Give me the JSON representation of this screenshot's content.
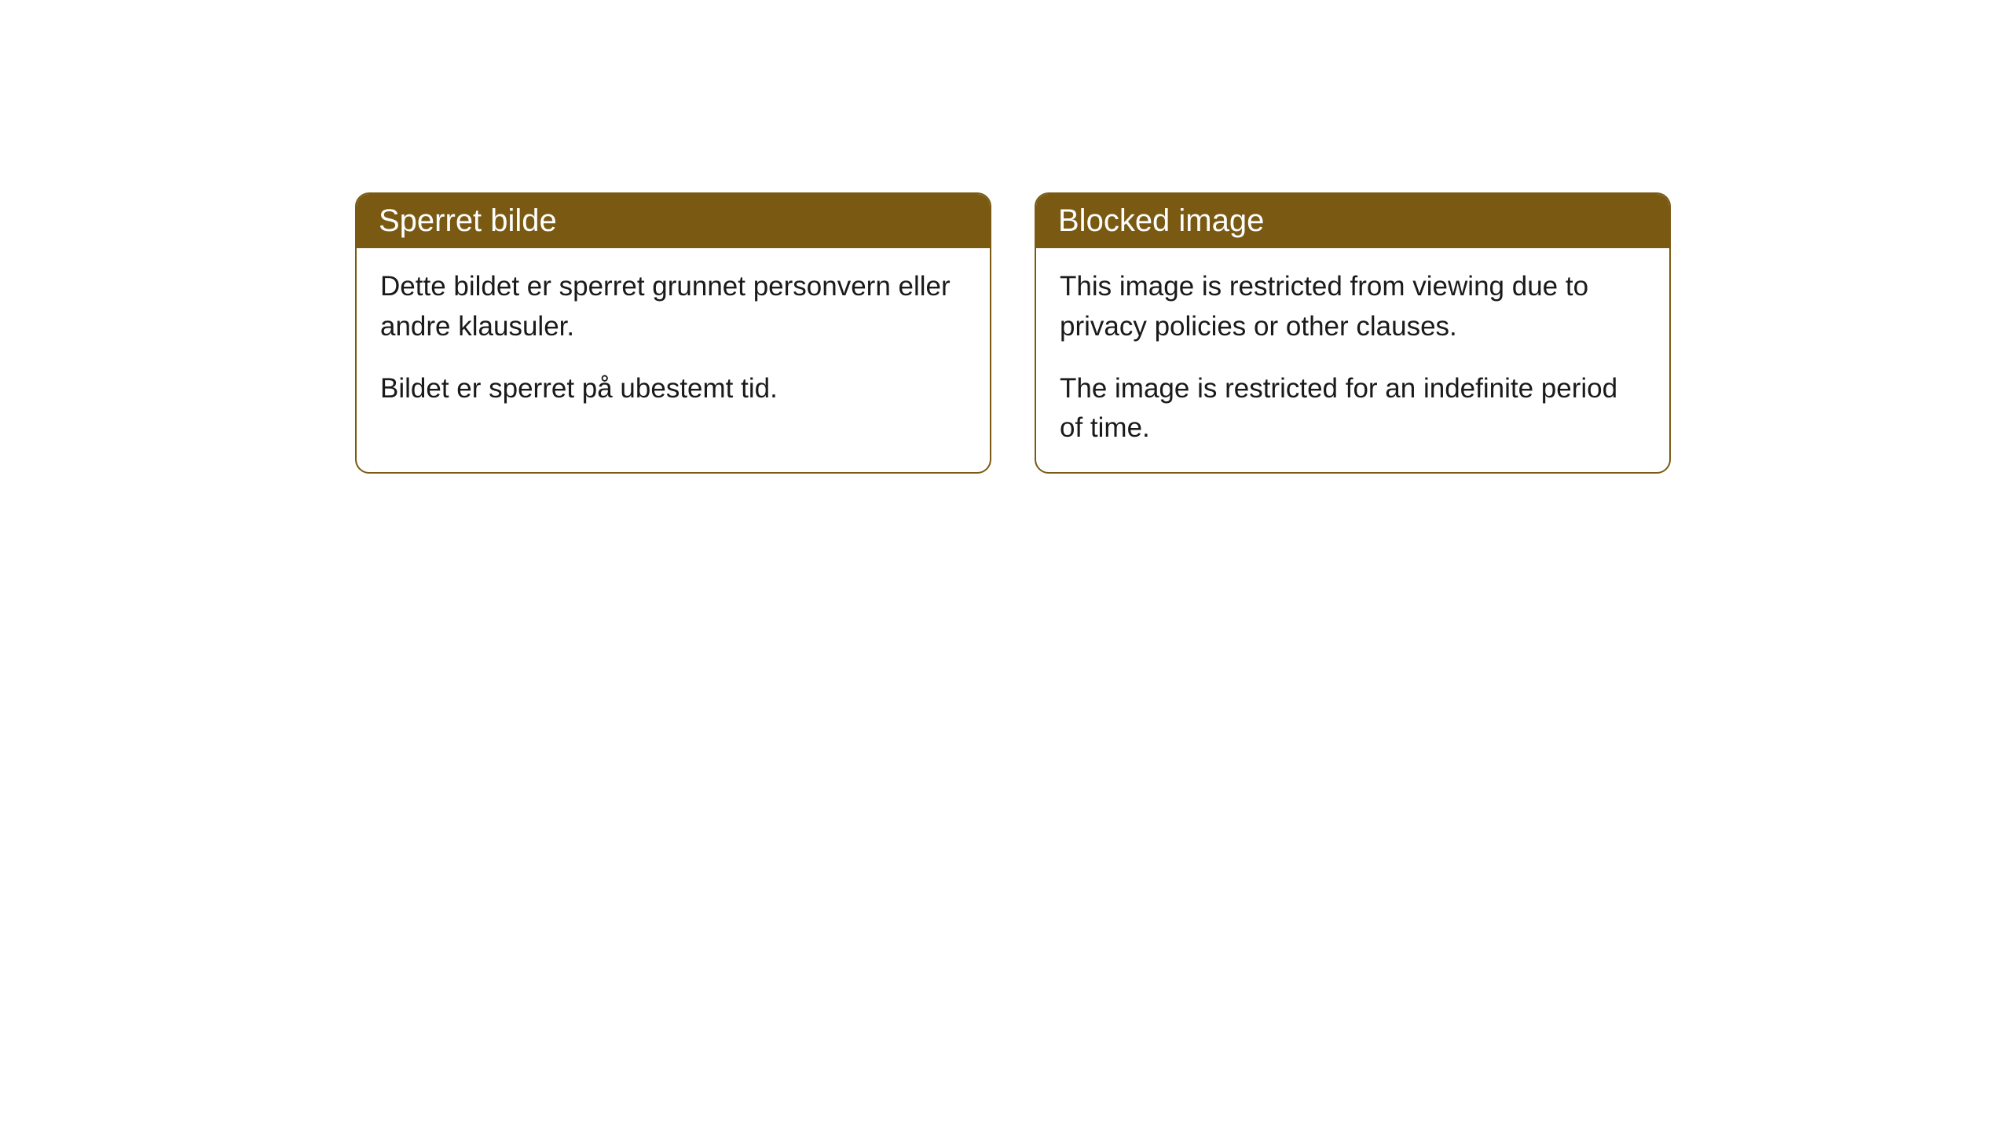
{
  "cards": [
    {
      "title": "Sperret bilde",
      "para1": "Dette bildet er sperret grunnet personvern eller andre klausuler.",
      "para2": "Bildet er sperret på ubestemt tid."
    },
    {
      "title": "Blocked image",
      "para1": "This image is restricted from viewing due to privacy policies or other clauses.",
      "para2": "The image is restricted for an indefinite period of time."
    }
  ],
  "style": {
    "header_bg": "#7a5a13",
    "header_text_color": "#ffffff",
    "border_color": "#7a5a13",
    "body_bg": "#ffffff",
    "body_text_color": "#1a1a1a",
    "border_radius": 18,
    "header_fontsize": 40,
    "body_fontsize": 35
  }
}
